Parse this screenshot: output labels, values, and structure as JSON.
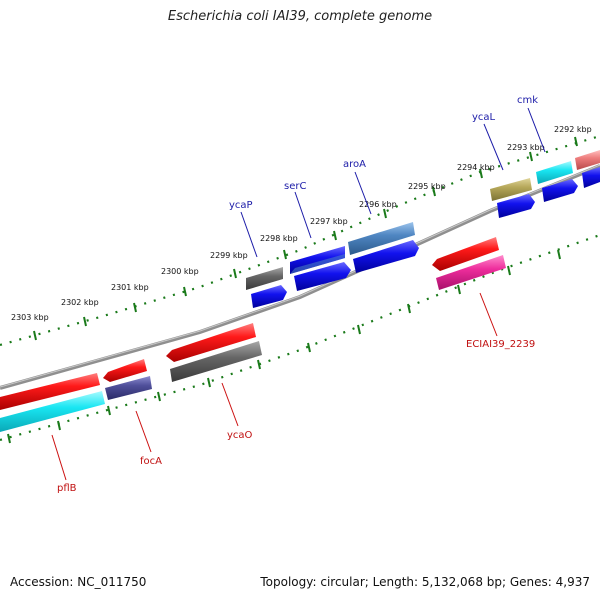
{
  "title": "Escherichia coli IAI39, complete genome",
  "accession": "Accession: NC_011750",
  "summary": "Topology: circular; Length: 5,132,068 bp; Genes: 4,937",
  "kbp_labels": [
    "2292 kbp",
    "2293 kbp",
    "2294 kbp",
    "2295 kbp",
    "2296 kbp",
    "2297 kbp",
    "2298 kbp",
    "2299 kbp",
    "2300 kbp",
    "2301 kbp",
    "2302 kbp",
    "2303 kbp"
  ],
  "genes_top": [
    "cmk",
    "ycaL",
    "aroA",
    "serC",
    "ycaP"
  ],
  "genes_bottom": [
    "ECIAI39_2239",
    "ycaO",
    "focA",
    "pflB"
  ],
  "colors": {
    "red": "#ee1111",
    "cyan": "#11e6f0",
    "gray": "#666666",
    "blue": "#1111ee",
    "steel": "#4f86c2",
    "khaki": "#b6a85a",
    "pink": "#ee2d9c",
    "salmon": "#ee7d7d",
    "purple": "#4f4f9a",
    "tick": "#1a7a1a",
    "backbone": "#888888"
  }
}
